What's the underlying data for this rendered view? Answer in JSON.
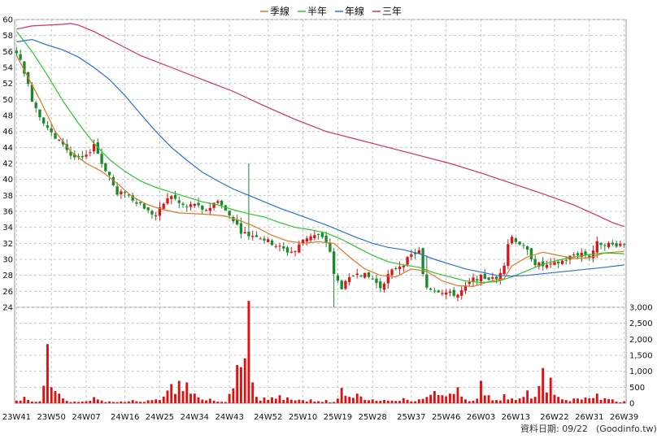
{
  "chart_data": {
    "type": "candlestick",
    "legend": [
      {
        "label": "季線",
        "color": "#e0782a"
      },
      {
        "label": "半年",
        "color": "#2ec52e"
      },
      {
        "label": "年線",
        "color": "#2f6fd6"
      },
      {
        "label": "三年",
        "color": "#d0306e"
      }
    ],
    "price_axis": {
      "min": 24,
      "max": 60,
      "ticks": [
        24,
        26,
        28,
        30,
        32,
        34,
        36,
        38,
        40,
        42,
        44,
        46,
        48,
        50,
        52,
        54,
        56,
        58,
        60
      ]
    },
    "volume_axis": {
      "min": 0,
      "max": 3000,
      "ticks": [
        "0",
        "500",
        "1,000",
        "1,500",
        "2,000",
        "2,500",
        "3,000"
      ]
    },
    "x_labels": [
      "23W41",
      "23W50",
      "24W07",
      "24W16",
      "24W25",
      "24W34",
      "24W43",
      "24W52",
      "25W10",
      "25W19",
      "25W28",
      "25W37",
      "25W46",
      "26W03",
      "26W13",
      "26W22",
      "26W31",
      "26W39"
    ],
    "weeks": 158,
    "anchors": [
      [
        0,
        56
      ],
      [
        2,
        53.5
      ],
      [
        4,
        50
      ],
      [
        6,
        48
      ],
      [
        8,
        46.5
      ],
      [
        10,
        45
      ],
      [
        12,
        44.5
      ],
      [
        14,
        43
      ],
      [
        16,
        42.5
      ],
      [
        18,
        42.8
      ],
      [
        20,
        44.5
      ],
      [
        22,
        42
      ],
      [
        24,
        40.5
      ],
      [
        26,
        38
      ],
      [
        28,
        38.5
      ],
      [
        30,
        37.5
      ],
      [
        32,
        37
      ],
      [
        34,
        36
      ],
      [
        36,
        35.5
      ],
      [
        38,
        37
      ],
      [
        40,
        38
      ],
      [
        42,
        37
      ],
      [
        44,
        36.5
      ],
      [
        46,
        37
      ],
      [
        48,
        36
      ],
      [
        50,
        36.5
      ],
      [
        52,
        37.5
      ],
      [
        54,
        36
      ],
      [
        56,
        35
      ],
      [
        58,
        33.5
      ],
      [
        60,
        33
      ],
      [
        62,
        33
      ],
      [
        64,
        32.5
      ],
      [
        66,
        32
      ],
      [
        68,
        31.5
      ],
      [
        70,
        31
      ],
      [
        72,
        31
      ],
      [
        74,
        32.5
      ],
      [
        76,
        33
      ],
      [
        78,
        33
      ],
      [
        80,
        32.2
      ],
      [
        81,
        31
      ],
      [
        82,
        28
      ],
      [
        84,
        26.5
      ],
      [
        86,
        27.5
      ],
      [
        88,
        28.5
      ],
      [
        90,
        28
      ],
      [
        92,
        27.5
      ],
      [
        94,
        26.5
      ],
      [
        96,
        28
      ],
      [
        98,
        29
      ],
      [
        100,
        29.5
      ],
      [
        102,
        30.5
      ],
      [
        104,
        31
      ],
      [
        105,
        28
      ],
      [
        106,
        26.5
      ],
      [
        108,
        26.2
      ],
      [
        110,
        26
      ],
      [
        112,
        25.7
      ],
      [
        114,
        25.6
      ],
      [
        116,
        26.5
      ],
      [
        118,
        27.5
      ],
      [
        120,
        27.8
      ],
      [
        122,
        27.6
      ],
      [
        124,
        27.5
      ],
      [
        126,
        29.5
      ],
      [
        127,
        32
      ],
      [
        128,
        32.8
      ],
      [
        130,
        32
      ],
      [
        132,
        31
      ],
      [
        134,
        29.5
      ],
      [
        136,
        29.2
      ],
      [
        138,
        29.2
      ],
      [
        140,
        29.6
      ],
      [
        142,
        30
      ],
      [
        144,
        30.6
      ],
      [
        146,
        30.8
      ],
      [
        148,
        30.3
      ],
      [
        150,
        32
      ],
      [
        152,
        32
      ],
      [
        154,
        31.8
      ],
      [
        157,
        32
      ]
    ],
    "spikes": {
      "106": 30.5
    },
    "volume_anchors": [
      [
        0,
        80
      ],
      [
        2,
        200
      ],
      [
        6,
        60
      ],
      [
        8,
        1850
      ],
      [
        9,
        500
      ],
      [
        10,
        380
      ],
      [
        11,
        300
      ],
      [
        12,
        150
      ],
      [
        16,
        40
      ],
      [
        20,
        190
      ],
      [
        24,
        60
      ],
      [
        30,
        100
      ],
      [
        36,
        120
      ],
      [
        40,
        600
      ],
      [
        42,
        700
      ],
      [
        44,
        650
      ],
      [
        46,
        300
      ],
      [
        54,
        40
      ],
      [
        60,
        3200
      ],
      [
        61,
        650
      ],
      [
        62,
        200
      ],
      [
        68,
        250
      ],
      [
        70,
        180
      ],
      [
        76,
        120
      ],
      [
        80,
        100
      ],
      [
        82,
        40
      ],
      [
        84,
        480
      ],
      [
        86,
        200
      ],
      [
        88,
        300
      ],
      [
        92,
        120
      ],
      [
        100,
        160
      ],
      [
        104,
        120
      ],
      [
        108,
        380
      ],
      [
        110,
        250
      ],
      [
        112,
        300
      ],
      [
        114,
        500
      ],
      [
        116,
        120
      ],
      [
        118,
        80
      ],
      [
        120,
        700
      ],
      [
        122,
        250
      ],
      [
        124,
        100
      ],
      [
        126,
        280
      ],
      [
        128,
        150
      ],
      [
        130,
        150
      ],
      [
        132,
        400
      ],
      [
        134,
        200
      ],
      [
        136,
        1100
      ],
      [
        138,
        800
      ],
      [
        140,
        200
      ],
      [
        144,
        150
      ],
      [
        150,
        300
      ],
      [
        154,
        120
      ],
      [
        157,
        60
      ]
    ],
    "ma_points": {
      "quarter": [
        [
          0,
          55.5
        ],
        [
          6,
          50
        ],
        [
          10,
          46
        ],
        [
          14,
          43.5
        ],
        [
          18,
          42
        ],
        [
          22,
          41
        ],
        [
          26,
          39.5
        ],
        [
          30,
          37.8
        ],
        [
          34,
          36.8
        ],
        [
          38,
          36.2
        ],
        [
          42,
          35.8
        ],
        [
          46,
          35.7
        ],
        [
          50,
          35.6
        ],
        [
          54,
          35.4
        ],
        [
          58,
          34.8
        ],
        [
          62,
          34
        ],
        [
          66,
          33
        ],
        [
          70,
          32.3
        ],
        [
          74,
          32
        ],
        [
          78,
          32.2
        ],
        [
          82,
          32
        ],
        [
          86,
          30.3
        ],
        [
          90,
          28.8
        ],
        [
          94,
          28
        ],
        [
          98,
          27.8
        ],
        [
          102,
          28.8
        ],
        [
          106,
          28.5
        ],
        [
          110,
          27.3
        ],
        [
          114,
          26.7
        ],
        [
          118,
          26.6
        ],
        [
          122,
          27.2
        ],
        [
          126,
          27.6
        ],
        [
          128,
          29.2
        ],
        [
          132,
          30.3
        ],
        [
          136,
          30.9
        ],
        [
          140,
          30.5
        ],
        [
          144,
          30.1
        ],
        [
          148,
          30.2
        ],
        [
          152,
          30.8
        ],
        [
          157,
          31
        ]
      ],
      "half": [
        [
          0,
          58.5
        ],
        [
          4,
          56
        ],
        [
          8,
          53
        ],
        [
          12,
          49.8
        ],
        [
          16,
          47
        ],
        [
          20,
          44.5
        ],
        [
          24,
          42.5
        ],
        [
          28,
          41
        ],
        [
          32,
          39.8
        ],
        [
          36,
          39
        ],
        [
          40,
          38.4
        ],
        [
          44,
          37.8
        ],
        [
          48,
          37.2
        ],
        [
          52,
          36.8
        ],
        [
          56,
          36.2
        ],
        [
          60,
          35.7
        ],
        [
          64,
          35.3
        ],
        [
          68,
          34.6
        ],
        [
          72,
          34
        ],
        [
          76,
          33.7
        ],
        [
          80,
          33.3
        ],
        [
          84,
          32.5
        ],
        [
          88,
          31.5
        ],
        [
          92,
          30.5
        ],
        [
          96,
          29.7
        ],
        [
          100,
          29.3
        ],
        [
          104,
          29
        ],
        [
          108,
          28.3
        ],
        [
          112,
          27.8
        ],
        [
          116,
          27.3
        ],
        [
          120,
          27.1
        ],
        [
          124,
          27.2
        ],
        [
          128,
          27.8
        ],
        [
          132,
          28.6
        ],
        [
          136,
          29.4
        ],
        [
          140,
          29.9
        ],
        [
          144,
          30.3
        ],
        [
          148,
          30.6
        ],
        [
          152,
          30.8
        ],
        [
          157,
          30.7
        ]
      ],
      "year": [
        [
          0,
          57.2
        ],
        [
          4,
          57.5
        ],
        [
          8,
          56.8
        ],
        [
          12,
          56.2
        ],
        [
          16,
          55.3
        ],
        [
          20,
          54
        ],
        [
          24,
          52.5
        ],
        [
          28,
          50.5
        ],
        [
          32,
          48.2
        ],
        [
          36,
          46
        ],
        [
          40,
          44
        ],
        [
          44,
          42.4
        ],
        [
          48,
          40.9
        ],
        [
          52,
          39.8
        ],
        [
          56,
          38.8
        ],
        [
          60,
          38
        ],
        [
          64,
          37.2
        ],
        [
          68,
          36.4
        ],
        [
          72,
          35.7
        ],
        [
          76,
          35
        ],
        [
          80,
          34.3
        ],
        [
          84,
          33.5
        ],
        [
          88,
          32.7
        ],
        [
          92,
          32
        ],
        [
          96,
          31.5
        ],
        [
          100,
          31.2
        ],
        [
          104,
          30.7
        ],
        [
          108,
          30
        ],
        [
          112,
          29.4
        ],
        [
          116,
          28.8
        ],
        [
          120,
          28.4
        ],
        [
          124,
          28
        ],
        [
          128,
          27.9
        ],
        [
          132,
          28
        ],
        [
          136,
          28.2
        ],
        [
          140,
          28.4
        ],
        [
          144,
          28.6
        ],
        [
          148,
          28.8
        ],
        [
          152,
          29
        ],
        [
          157,
          29.3
        ]
      ],
      "three": [
        [
          0,
          58.8
        ],
        [
          4,
          59.2
        ],
        [
          8,
          59.3
        ],
        [
          12,
          59.4
        ],
        [
          14,
          59.5
        ],
        [
          16,
          59.3
        ],
        [
          20,
          58.5
        ],
        [
          24,
          57.5
        ],
        [
          28,
          56.5
        ],
        [
          32,
          55.5
        ],
        [
          40,
          54
        ],
        [
          48,
          52.5
        ],
        [
          56,
          51
        ],
        [
          64,
          49.2
        ],
        [
          72,
          47.5
        ],
        [
          80,
          46
        ],
        [
          88,
          45
        ],
        [
          96,
          44
        ],
        [
          104,
          43
        ],
        [
          112,
          42
        ],
        [
          120,
          40.8
        ],
        [
          128,
          39.5
        ],
        [
          136,
          38.2
        ],
        [
          144,
          36.8
        ],
        [
          150,
          35.5
        ],
        [
          154,
          34.6
        ],
        [
          157,
          34.1
        ]
      ]
    }
  },
  "footer": {
    "date": "資料日期: 09/22",
    "source": "(Goodinfo.tw)"
  }
}
